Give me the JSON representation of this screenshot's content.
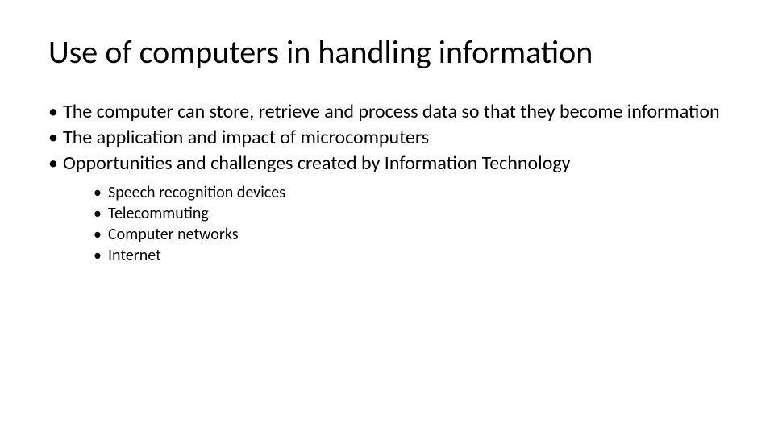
{
  "slide": {
    "title": "Use of computers in handling information",
    "bullets": [
      {
        "text": "The computer can store, retrieve and process data so that they become information"
      },
      {
        "text": "The application and impact of microcomputers"
      },
      {
        "text": "Opportunities and challenges created by Information Technology",
        "subBullets": [
          "Speech recognition devices",
          "Telecommuting",
          "Computer networks",
          "Internet"
        ]
      }
    ]
  },
  "styling": {
    "background_color": "#ffffff",
    "text_color": "#000000",
    "title_fontsize": 40,
    "title_fontweight": 400,
    "bullet_l1_fontsize": 24,
    "bullet_l2_fontsize": 20,
    "font_family": "Calibri"
  }
}
